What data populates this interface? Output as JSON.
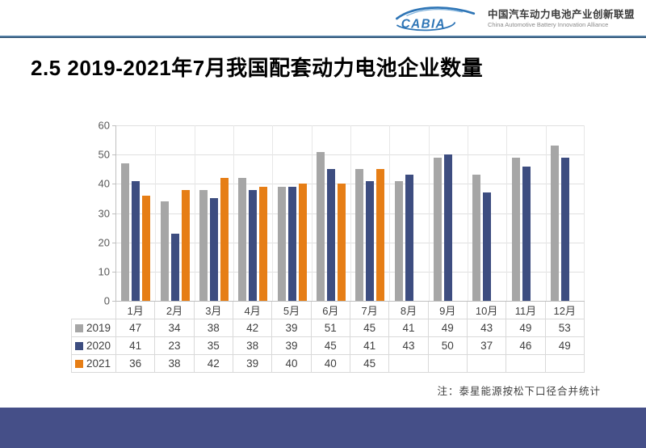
{
  "header": {
    "logo_text": "CABIA",
    "org_name_cn": "中国汽车动力电池产业创新联盟",
    "org_name_en": "China Automotive Battery Innovation Alliance",
    "brand_color": "#2e75b6"
  },
  "title": "2.5 2019-2021年7月我国配套动力电池企业数量",
  "note": "注：泰星能源按松下口径合并统计",
  "chart_data": {
    "type": "bar",
    "title": "2019-2021年7月我国配套动力电池企业数量",
    "categories": [
      "1月",
      "2月",
      "3月",
      "4月",
      "5月",
      "6月",
      "7月",
      "8月",
      "9月",
      "10月",
      "11月",
      "12月"
    ],
    "series": [
      {
        "name": "2019",
        "color": "#a6a6a6",
        "values": [
          47,
          34,
          38,
          42,
          39,
          51,
          45,
          41,
          49,
          43,
          49,
          53
        ]
      },
      {
        "name": "2020",
        "color": "#3d4d80",
        "values": [
          41,
          23,
          35,
          38,
          39,
          45,
          41,
          43,
          50,
          37,
          46,
          49
        ]
      },
      {
        "name": "2021",
        "color": "#e67e16",
        "values": [
          36,
          38,
          42,
          39,
          40,
          40,
          45,
          null,
          null,
          null,
          null,
          null
        ]
      }
    ],
    "xlabel": "",
    "ylabel": "",
    "ylim": [
      0,
      60
    ],
    "ytick_step": 10,
    "grid": true,
    "legend_position": "data-table-left"
  },
  "footer_color": "#454f88"
}
